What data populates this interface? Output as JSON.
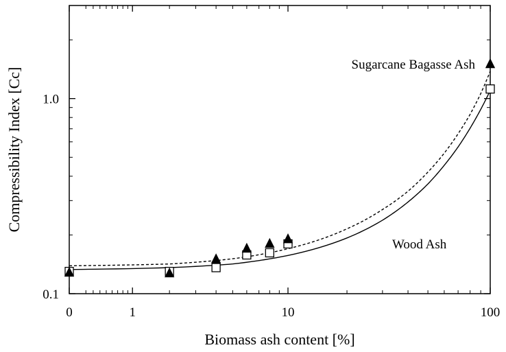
{
  "chart_data": {
    "type": "scatter",
    "xlabel": "Biomass ash content [%]",
    "ylabel": "Compressibility Index [Cc]",
    "x_scale": "log (with 0 shown at the left edge)",
    "y_scale": "log",
    "xlim": [
      0,
      100
    ],
    "ylim": [
      0.1,
      3.0
    ],
    "x_ticks": [
      {
        "value": 0,
        "label": "0"
      },
      {
        "value": 1,
        "label": "1"
      },
      {
        "value": 10,
        "label": "10"
      },
      {
        "value": 100,
        "label": "100"
      }
    ],
    "y_ticks": [
      {
        "value": 0.1,
        "label": "0.1"
      },
      {
        "value": 1.0,
        "label": "1.0"
      }
    ],
    "grid": false,
    "series": [
      {
        "name": "Sugarcane Bagasse Ash",
        "marker": "filled-triangle",
        "line": "dashed",
        "color": "#000000",
        "points": [
          {
            "x": 0,
            "y": 0.128
          },
          {
            "x": 2,
            "y": 0.127
          },
          {
            "x": 4,
            "y": 0.15
          },
          {
            "x": 6,
            "y": 0.17
          },
          {
            "x": 8,
            "y": 0.18
          },
          {
            "x": 10,
            "y": 0.19
          },
          {
            "x": 100,
            "y": 1.5
          }
        ],
        "fit": [
          {
            "x": 0,
            "y": 0.139
          },
          {
            "x": 2,
            "y": 0.142
          },
          {
            "x": 5,
            "y": 0.151
          },
          {
            "x": 10,
            "y": 0.17
          },
          {
            "x": 20,
            "y": 0.215
          },
          {
            "x": 30,
            "y": 0.27
          },
          {
            "x": 40,
            "y": 0.335
          },
          {
            "x": 50,
            "y": 0.42
          },
          {
            "x": 60,
            "y": 0.525
          },
          {
            "x": 70,
            "y": 0.66
          },
          {
            "x": 80,
            "y": 0.83
          },
          {
            "x": 90,
            "y": 1.06
          },
          {
            "x": 100,
            "y": 1.38
          }
        ]
      },
      {
        "name": "Wood Ash",
        "marker": "open-square",
        "line": "solid",
        "color": "#000000",
        "points": [
          {
            "x": 0,
            "y": 0.13
          },
          {
            "x": 2,
            "y": 0.13
          },
          {
            "x": 4,
            "y": 0.136
          },
          {
            "x": 6,
            "y": 0.158
          },
          {
            "x": 8,
            "y": 0.162
          },
          {
            "x": 10,
            "y": 0.18
          },
          {
            "x": 100,
            "y": 1.12
          }
        ],
        "fit": [
          {
            "x": 0,
            "y": 0.133
          },
          {
            "x": 2,
            "y": 0.136
          },
          {
            "x": 5,
            "y": 0.142
          },
          {
            "x": 10,
            "y": 0.157
          },
          {
            "x": 20,
            "y": 0.193
          },
          {
            "x": 30,
            "y": 0.238
          },
          {
            "x": 40,
            "y": 0.295
          },
          {
            "x": 50,
            "y": 0.365
          },
          {
            "x": 60,
            "y": 0.455
          },
          {
            "x": 70,
            "y": 0.565
          },
          {
            "x": 80,
            "y": 0.705
          },
          {
            "x": 90,
            "y": 0.88
          },
          {
            "x": 100,
            "y": 1.1
          }
        ]
      }
    ],
    "annotations": [
      {
        "text": "Sugarcane Bagasse Ash",
        "near_series": "Sugarcane Bagasse Ash"
      },
      {
        "text": "Wood Ash",
        "near_series": "Wood Ash"
      }
    ]
  }
}
